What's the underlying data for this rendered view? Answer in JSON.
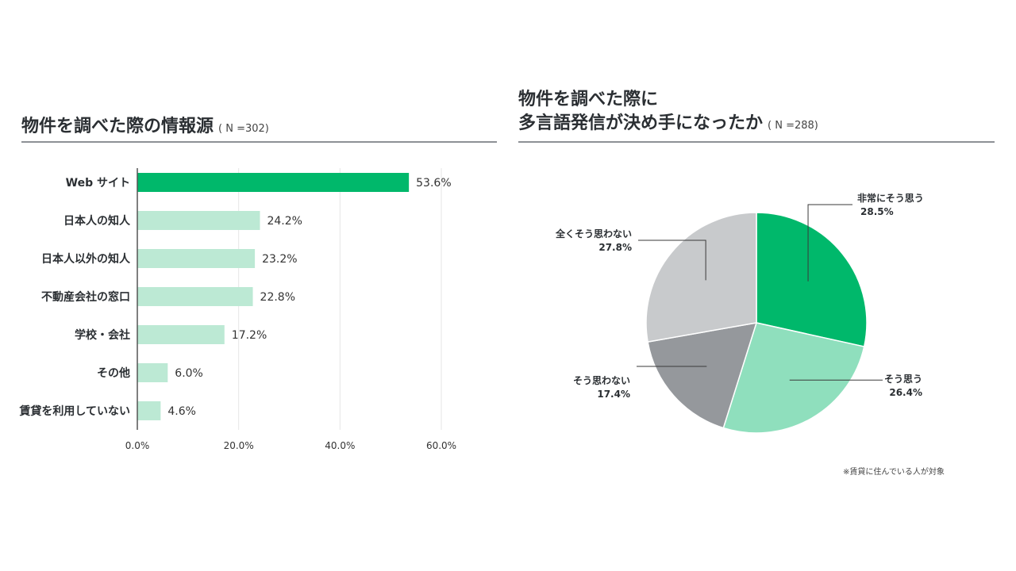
{
  "left_chart": {
    "title": "物件を調べた際の情報源",
    "n_label": "( N =302)"
  },
  "right_chart": {
    "title_line1": "物件を調べた際に",
    "title_line2": "多言語発信が決め手になったか",
    "n_label": "( N =288)"
  },
  "footnote": "※賃貸に住んでいる人が対象",
  "chart_data": [
    {
      "type": "bar",
      "orientation": "horizontal",
      "categories": [
        "Web サイト",
        "日本人の知人",
        "日本人以外の知人",
        "不動産会社の窓口",
        "学校・会社",
        "その他",
        "賃貸を利用していない"
      ],
      "values": [
        53.6,
        24.2,
        23.2,
        22.8,
        17.2,
        6.0,
        4.6
      ],
      "value_labels": [
        "53.6%",
        "24.2%",
        "23.2%",
        "22.8%",
        "17.2%",
        "6.0%",
        "4.6%"
      ],
      "xlim": [
        0,
        60
      ],
      "xticks": [
        0,
        20,
        40,
        60
      ],
      "xtick_labels": [
        "0.0%",
        "20.0%",
        "40.0%",
        "60.0%"
      ],
      "grid": true,
      "colors": {
        "highlight": "#00b86b",
        "default": "#bce9d4",
        "axis": "#555555",
        "grid": "#e6e6e6"
      }
    },
    {
      "type": "pie",
      "labels": [
        "非常にそう思う",
        "そう思う",
        "そう思わない",
        "全くそう思わない"
      ],
      "values": [
        28.5,
        26.4,
        17.4,
        27.8
      ],
      "value_labels": [
        "28.5%",
        "26.4%",
        "17.4%",
        "27.8%"
      ],
      "colors": [
        "#00b86b",
        "#8fdfbd",
        "#95989c",
        "#c8cacc"
      ],
      "start": "12 o'clock, clockwise"
    }
  ]
}
